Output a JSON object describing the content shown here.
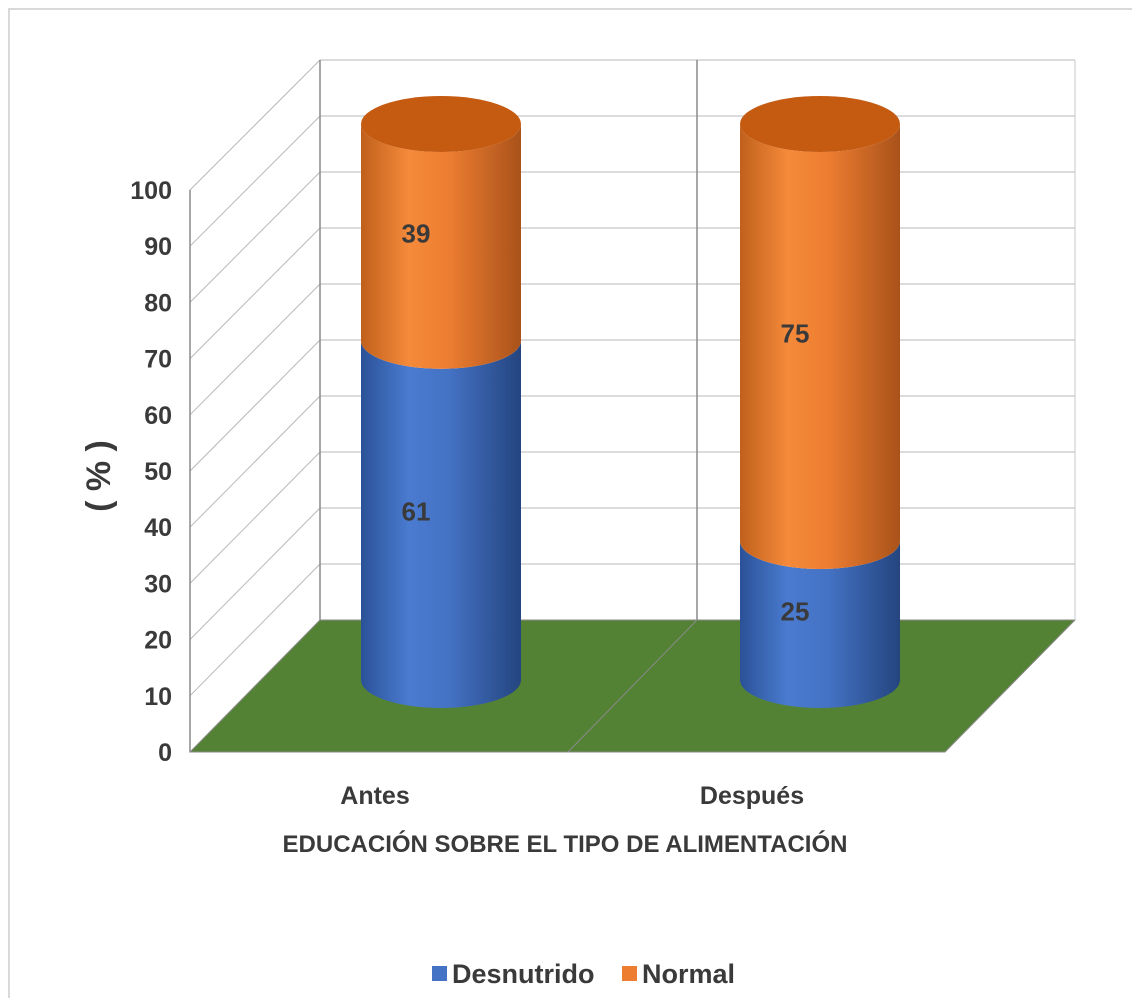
{
  "chart_data": {
    "type": "bar",
    "stacked": true,
    "style": "3d-cylinder",
    "categories": [
      "Antes",
      "Después"
    ],
    "series": [
      {
        "name": "Desnutrido",
        "values": [
          61,
          25
        ],
        "labels": [
          "61",
          "25"
        ],
        "color": "#4472c4"
      },
      {
        "name": "Normal",
        "values": [
          39,
          75
        ],
        "labels": [
          "39",
          "75"
        ],
        "color": "#ed7d31"
      }
    ],
    "title": "",
    "xlabel": "EDUCACIÓN SOBRE EL TIPO DE ALIMENTACIÓN",
    "ylabel": "( % )",
    "ylim": [
      0,
      100
    ],
    "yticks": [
      "0",
      "10",
      "20",
      "30",
      "40",
      "50",
      "60",
      "70",
      "80",
      "90",
      "100"
    ],
    "grid": true,
    "legend_position": "bottom",
    "floor_color": "#548235"
  }
}
